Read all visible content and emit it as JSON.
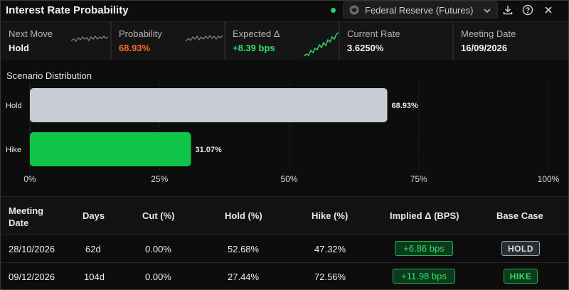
{
  "header": {
    "title": "Interest Rate Probability",
    "source_label": "Federal Reserve (Futures)",
    "icons": [
      "download-icon",
      "help-icon",
      "close-icon"
    ]
  },
  "stats": [
    {
      "label": "Next Move",
      "value": "Hold",
      "color": "#f2f2f2"
    },
    {
      "label": "Probability",
      "value": "68.93%",
      "color": "#ff6a2b"
    },
    {
      "label": "Expected Δ",
      "value": "+8.39 bps",
      "color": "#2fe06a"
    },
    {
      "label": "Current Rate",
      "value": "3.6250%",
      "color": "#f2f2f2"
    },
    {
      "label": "Meeting Date",
      "value": "16/09/2026",
      "color": "#f2f2f2"
    }
  ],
  "chart_data": {
    "type": "bar",
    "orientation": "horizontal",
    "title": "Scenario Distribution",
    "categories": [
      "Hold",
      "Hike"
    ],
    "values": [
      68.93,
      31.07
    ],
    "value_labels": [
      "68.93%",
      "31.07%"
    ],
    "colors": [
      "#c8ccd4",
      "#10c44a"
    ],
    "xlim": [
      0,
      100
    ],
    "xticks": [
      "0%",
      "25%",
      "50%",
      "75%",
      "100%"
    ],
    "grid": true
  },
  "table": {
    "headers": [
      "Meeting\nDate",
      "Days",
      "Cut (%)",
      "Hold (%)",
      "Hike (%)",
      "Implied Δ (BPS)",
      "Base Case"
    ],
    "rows": [
      {
        "date": "28/10/2026",
        "days": "62d",
        "cut": "0.00%",
        "hold": "52.68%",
        "hike": "47.32%",
        "implied": "+6.86 bps",
        "base": "HOLD"
      },
      {
        "date": "09/12/2026",
        "days": "104d",
        "cut": "0.00%",
        "hold": "27.44%",
        "hike": "72.56%",
        "implied": "+11.98 bps",
        "base": "HIKE"
      }
    ]
  }
}
